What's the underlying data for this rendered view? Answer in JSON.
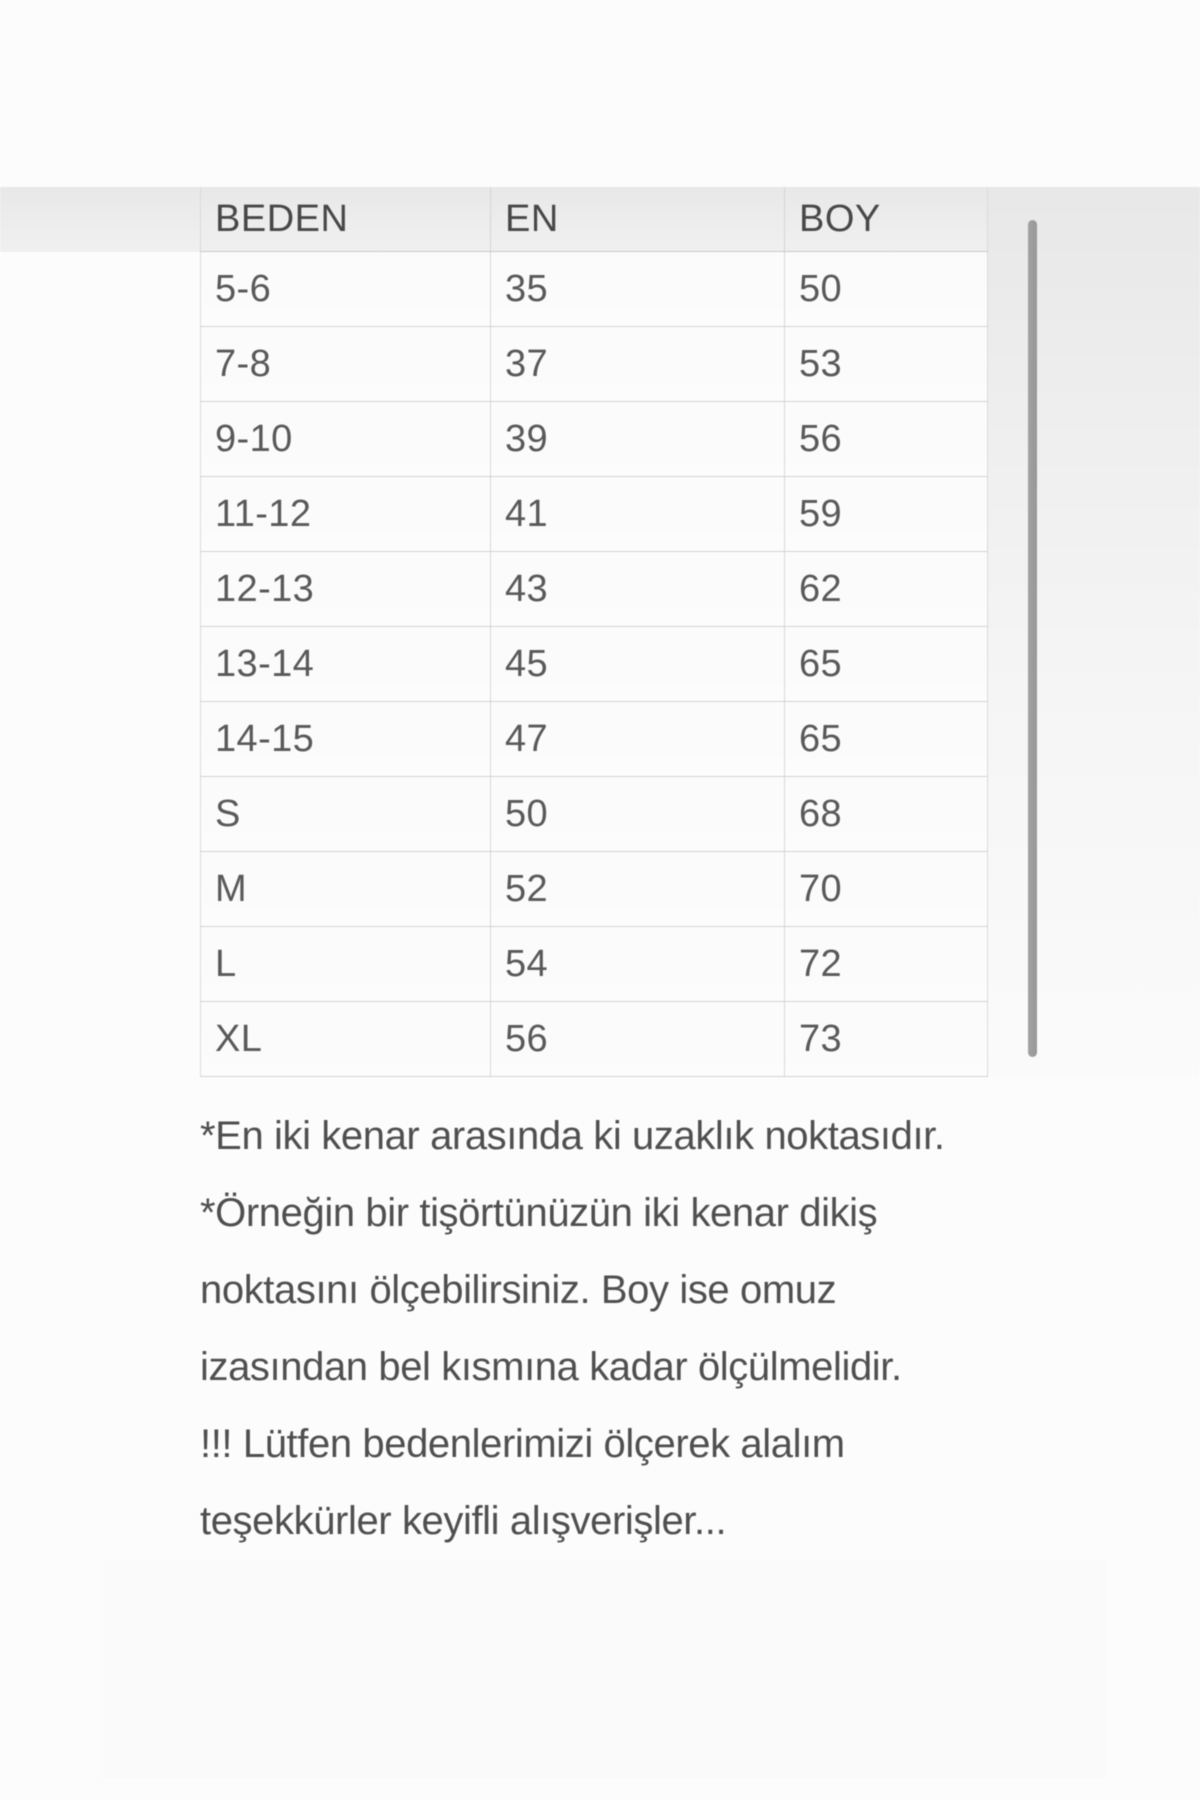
{
  "table": {
    "columns": [
      "BEDEN",
      "EN",
      "BOY"
    ],
    "rows": [
      [
        "5-6",
        "35",
        "50"
      ],
      [
        "7-8",
        "37",
        "53"
      ],
      [
        "9-10",
        "39",
        "56"
      ],
      [
        "11-12",
        "41",
        "59"
      ],
      [
        "12-13",
        "43",
        "62"
      ],
      [
        "13-14",
        "45",
        "65"
      ],
      [
        "14-15",
        "47",
        "65"
      ],
      [
        "S",
        "50",
        "68"
      ],
      [
        "M",
        "52",
        "70"
      ],
      [
        "L",
        "54",
        "72"
      ],
      [
        "XL",
        "56",
        "73"
      ]
    ]
  },
  "notes": {
    "lines": [
      "*En iki kenar arasında ki uzaklık noktasıdır.",
      "*Örneğin bir tişörtünüzün iki kenar dikiş",
      "noktasını ölçebilirsiniz. Boy ise omuz",
      "izasından bel kısmına kadar ölçülmelidir.",
      "!!! Lütfen bedenlerimizi ölçerek alalım",
      "teşekkürler keyifli alışverişler..."
    ]
  },
  "scrollbar": {
    "orientation": "vertical",
    "thumb_color": "#9c9c9c"
  },
  "colors": {
    "page_background": "#ffffff",
    "header_band": "#ededed",
    "row_background": "#ffffff",
    "grid_line": "#d2d2d2",
    "header_text": "#464646",
    "cell_text": "#585858",
    "note_text": "#4e4e4e"
  }
}
